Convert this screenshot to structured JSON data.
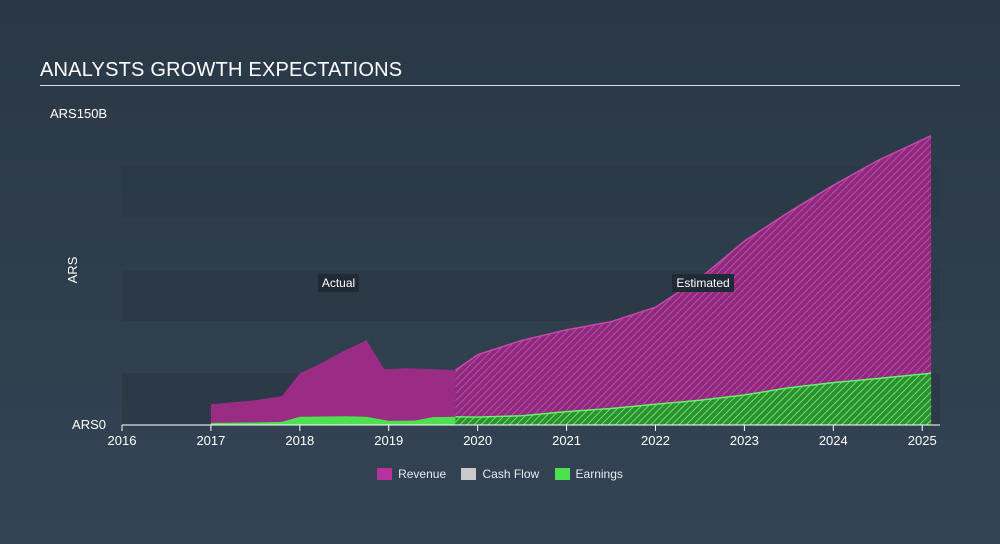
{
  "title": "ANALYSTS GROWTH EXPECTATIONS",
  "chart_data": {
    "type": "area",
    "ylabel": "ARS",
    "y_tick_labels": {
      "top": "ARS150B",
      "bottom": "ARS0"
    },
    "ylim": [
      0,
      150
    ],
    "xlim": [
      2016,
      2025.2
    ],
    "x_ticks": [
      2016,
      2017,
      2018,
      2019,
      2020,
      2021,
      2022,
      2023,
      2024,
      2025
    ],
    "split_x": 2019.75,
    "annotations": {
      "actual": "Actual",
      "estimated": "Estimated"
    },
    "series": [
      {
        "name": "Revenue",
        "color": "#b5339a",
        "points": [
          [
            2017.0,
            10
          ],
          [
            2017.5,
            12
          ],
          [
            2017.8,
            14
          ],
          [
            2018.0,
            25
          ],
          [
            2018.2,
            29
          ],
          [
            2018.5,
            36
          ],
          [
            2018.75,
            41
          ],
          [
            2018.95,
            27
          ],
          [
            2019.2,
            27.5
          ],
          [
            2019.5,
            27
          ],
          [
            2019.75,
            26.5
          ],
          [
            2020.0,
            34
          ],
          [
            2020.5,
            41
          ],
          [
            2021.0,
            46
          ],
          [
            2021.5,
            50
          ],
          [
            2022.0,
            57
          ],
          [
            2022.5,
            71
          ],
          [
            2023.0,
            89
          ],
          [
            2023.5,
            103
          ],
          [
            2024.0,
            116
          ],
          [
            2024.5,
            128
          ],
          [
            2025.1,
            140
          ]
        ]
      },
      {
        "name": "Cash Flow",
        "color": "#c9c9c9",
        "points": []
      },
      {
        "name": "Earnings",
        "color": "#4de04f",
        "points": [
          [
            2017.0,
            1
          ],
          [
            2017.5,
            1.2
          ],
          [
            2017.8,
            1.5
          ],
          [
            2018.0,
            4
          ],
          [
            2018.5,
            4.2
          ],
          [
            2018.75,
            4
          ],
          [
            2019.0,
            2
          ],
          [
            2019.3,
            2.2
          ],
          [
            2019.5,
            3.8
          ],
          [
            2019.75,
            4
          ],
          [
            2020.0,
            3.8
          ],
          [
            2020.5,
            4.5
          ],
          [
            2021.0,
            6.5
          ],
          [
            2021.5,
            8
          ],
          [
            2022.0,
            10
          ],
          [
            2022.5,
            12
          ],
          [
            2023.0,
            14.5
          ],
          [
            2023.5,
            18
          ],
          [
            2024.0,
            20.5
          ],
          [
            2024.5,
            22.5
          ],
          [
            2025.1,
            25
          ]
        ]
      }
    ]
  }
}
